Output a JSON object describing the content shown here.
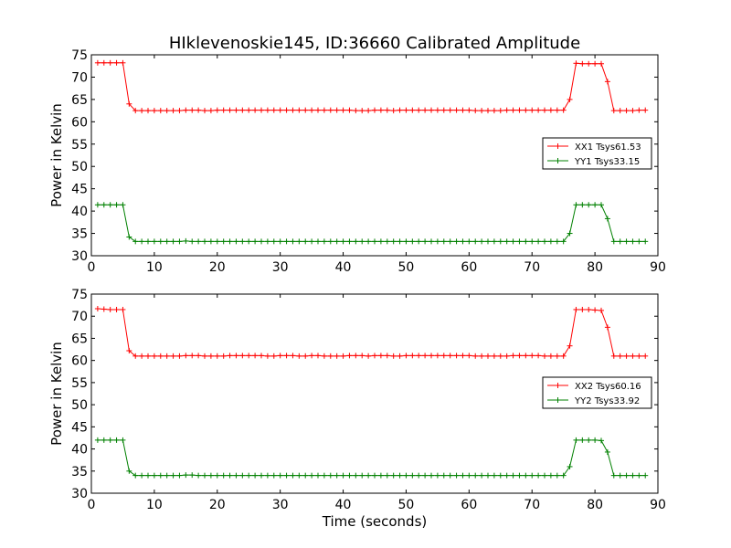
{
  "figure": {
    "title": "HIklevenoskie145, ID:36660 Calibrated Amplitude"
  },
  "chart_data": [
    {
      "type": "line",
      "xlim": [
        0,
        90
      ],
      "ylim": [
        30,
        75
      ],
      "xticks": [
        0,
        10,
        20,
        30,
        40,
        50,
        60,
        70,
        80,
        90
      ],
      "yticks": [
        30,
        35,
        40,
        45,
        50,
        55,
        60,
        65,
        70,
        75
      ],
      "xlabel": "",
      "ylabel": "Power in Kelvin",
      "grid": false,
      "legend_position": "right",
      "x": [
        1,
        2,
        3,
        4,
        5,
        6,
        7,
        8,
        9,
        10,
        11,
        12,
        13,
        14,
        15,
        16,
        17,
        18,
        19,
        20,
        21,
        22,
        23,
        24,
        25,
        26,
        27,
        28,
        29,
        30,
        31,
        32,
        33,
        34,
        35,
        36,
        37,
        38,
        39,
        40,
        41,
        42,
        43,
        44,
        45,
        46,
        47,
        48,
        49,
        50,
        51,
        52,
        53,
        54,
        55,
        56,
        57,
        58,
        59,
        60,
        61,
        62,
        63,
        64,
        65,
        66,
        67,
        68,
        69,
        70,
        71,
        72,
        73,
        74,
        75,
        76,
        77,
        78,
        79,
        80,
        81,
        82,
        83,
        84,
        85,
        86,
        87,
        88
      ],
      "series": [
        {
          "name": "XX1 Tsys61.53",
          "color": "#ff0000",
          "values": [
            73.2,
            73.2,
            73.2,
            73.2,
            73.2,
            64.0,
            62.5,
            62.5,
            62.5,
            62.5,
            62.5,
            62.5,
            62.5,
            62.5,
            62.6,
            62.6,
            62.6,
            62.5,
            62.5,
            62.6,
            62.6,
            62.6,
            62.6,
            62.6,
            62.6,
            62.6,
            62.6,
            62.6,
            62.6,
            62.6,
            62.6,
            62.6,
            62.6,
            62.6,
            62.6,
            62.6,
            62.6,
            62.6,
            62.6,
            62.6,
            62.6,
            62.5,
            62.5,
            62.5,
            62.6,
            62.6,
            62.6,
            62.5,
            62.6,
            62.6,
            62.6,
            62.6,
            62.6,
            62.6,
            62.6,
            62.6,
            62.6,
            62.6,
            62.6,
            62.6,
            62.5,
            62.5,
            62.5,
            62.5,
            62.5,
            62.6,
            62.6,
            62.6,
            62.6,
            62.6,
            62.6,
            62.6,
            62.6,
            62.6,
            62.6,
            65.0,
            73.1,
            73.0,
            73.0,
            73.0,
            73.0,
            69.0,
            62.5,
            62.5,
            62.5,
            62.5,
            62.6,
            62.6
          ]
        },
        {
          "name": "YY1 Tsys33.15",
          "color": "#008000",
          "values": [
            41.4,
            41.4,
            41.4,
            41.4,
            41.4,
            34.2,
            33.2,
            33.2,
            33.2,
            33.2,
            33.2,
            33.2,
            33.2,
            33.2,
            33.3,
            33.2,
            33.2,
            33.2,
            33.2,
            33.2,
            33.2,
            33.2,
            33.2,
            33.2,
            33.2,
            33.2,
            33.2,
            33.2,
            33.2,
            33.2,
            33.2,
            33.2,
            33.2,
            33.2,
            33.2,
            33.2,
            33.2,
            33.2,
            33.2,
            33.2,
            33.2,
            33.2,
            33.2,
            33.2,
            33.2,
            33.2,
            33.2,
            33.2,
            33.2,
            33.2,
            33.2,
            33.2,
            33.2,
            33.2,
            33.2,
            33.2,
            33.2,
            33.2,
            33.2,
            33.2,
            33.2,
            33.2,
            33.2,
            33.2,
            33.2,
            33.2,
            33.2,
            33.2,
            33.2,
            33.2,
            33.2,
            33.2,
            33.2,
            33.2,
            33.2,
            35.0,
            41.4,
            41.4,
            41.4,
            41.4,
            41.4,
            38.3,
            33.2,
            33.2,
            33.2,
            33.2,
            33.2,
            33.2
          ]
        }
      ]
    },
    {
      "type": "line",
      "xlim": [
        0,
        90
      ],
      "ylim": [
        30,
        75
      ],
      "xticks": [
        0,
        10,
        20,
        30,
        40,
        50,
        60,
        70,
        80,
        90
      ],
      "yticks": [
        30,
        35,
        40,
        45,
        50,
        55,
        60,
        65,
        70,
        75
      ],
      "xlabel": "Time (seconds)",
      "ylabel": "Power in Kelvin",
      "grid": false,
      "legend_position": "right",
      "x": [
        1,
        2,
        3,
        4,
        5,
        6,
        7,
        8,
        9,
        10,
        11,
        12,
        13,
        14,
        15,
        16,
        17,
        18,
        19,
        20,
        21,
        22,
        23,
        24,
        25,
        26,
        27,
        28,
        29,
        30,
        31,
        32,
        33,
        34,
        35,
        36,
        37,
        38,
        39,
        40,
        41,
        42,
        43,
        44,
        45,
        46,
        47,
        48,
        49,
        50,
        51,
        52,
        53,
        54,
        55,
        56,
        57,
        58,
        59,
        60,
        61,
        62,
        63,
        64,
        65,
        66,
        67,
        68,
        69,
        70,
        71,
        72,
        73,
        74,
        75,
        76,
        77,
        78,
        79,
        80,
        81,
        82,
        83,
        84,
        85,
        86,
        87,
        88
      ],
      "series": [
        {
          "name": "XX2 Tsys60.16",
          "color": "#ff0000",
          "values": [
            71.7,
            71.6,
            71.5,
            71.5,
            71.5,
            62.2,
            61.0,
            61.0,
            61.0,
            61.0,
            61.0,
            61.0,
            61.0,
            61.0,
            61.1,
            61.1,
            61.1,
            61.0,
            61.0,
            61.0,
            61.0,
            61.1,
            61.1,
            61.1,
            61.1,
            61.1,
            61.1,
            61.0,
            61.0,
            61.1,
            61.1,
            61.1,
            61.0,
            61.0,
            61.1,
            61.1,
            61.0,
            61.0,
            61.0,
            61.0,
            61.1,
            61.1,
            61.1,
            61.0,
            61.1,
            61.1,
            61.1,
            61.0,
            61.0,
            61.1,
            61.1,
            61.1,
            61.1,
            61.1,
            61.1,
            61.1,
            61.1,
            61.1,
            61.1,
            61.1,
            61.0,
            61.0,
            61.0,
            61.0,
            61.0,
            61.0,
            61.1,
            61.1,
            61.1,
            61.1,
            61.1,
            61.0,
            61.0,
            61.0,
            61.0,
            63.3,
            71.5,
            71.5,
            71.5,
            71.4,
            71.3,
            67.5,
            61.0,
            61.0,
            61.0,
            61.0,
            61.0,
            61.0
          ]
        },
        {
          "name": "YY2 Tsys33.92",
          "color": "#008000",
          "values": [
            42.0,
            42.0,
            42.0,
            42.0,
            42.0,
            35.0,
            34.0,
            34.0,
            34.0,
            34.0,
            34.0,
            34.0,
            34.0,
            34.0,
            34.1,
            34.1,
            34.0,
            34.0,
            34.0,
            34.0,
            34.0,
            34.0,
            34.0,
            34.0,
            34.0,
            34.0,
            34.0,
            34.0,
            34.0,
            34.0,
            34.0,
            34.0,
            34.0,
            34.0,
            34.0,
            34.0,
            34.0,
            34.0,
            34.0,
            34.0,
            34.0,
            34.0,
            34.0,
            34.0,
            34.0,
            34.0,
            34.0,
            34.0,
            34.0,
            34.0,
            34.0,
            34.0,
            34.0,
            34.0,
            34.0,
            34.0,
            34.0,
            34.0,
            34.0,
            34.0,
            34.0,
            34.0,
            34.0,
            34.0,
            34.0,
            34.0,
            34.0,
            34.0,
            34.0,
            34.0,
            34.0,
            34.0,
            34.0,
            34.0,
            34.0,
            36.0,
            42.0,
            42.0,
            42.0,
            42.0,
            41.9,
            39.3,
            34.0,
            34.0,
            34.0,
            34.0,
            34.0,
            34.0
          ]
        }
      ]
    }
  ]
}
